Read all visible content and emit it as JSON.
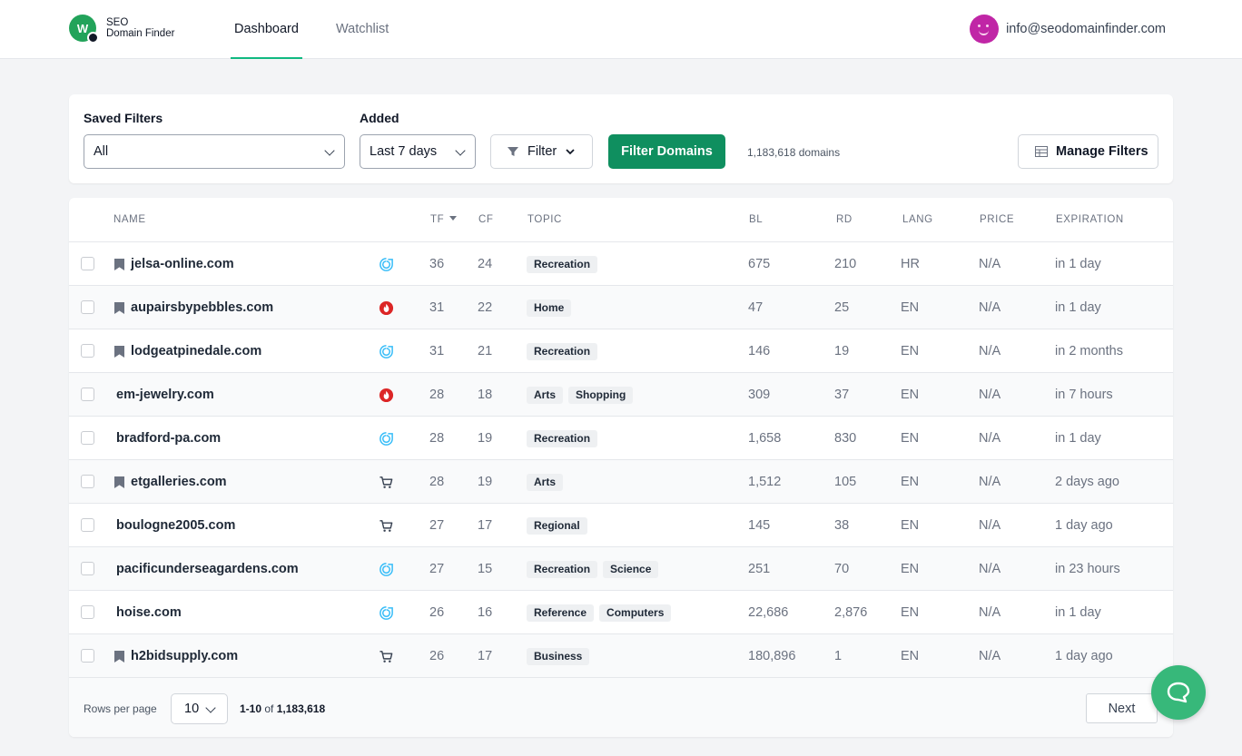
{
  "brand": {
    "logo_letter": "W",
    "line1": "SEO",
    "line2": "Domain Finder",
    "accent": "#10b981"
  },
  "nav": {
    "tabs": [
      {
        "label": "Dashboard",
        "active": true
      },
      {
        "label": "Watchlist",
        "active": false
      }
    ]
  },
  "user": {
    "email": "info@seodomainfinder.com",
    "avatar_icon": "smiley-avatar-icon"
  },
  "filters": {
    "saved_label": "Saved Filters",
    "saved_value": "All",
    "added_label": "Added",
    "added_value": "Last 7 days",
    "filter_button": "Filter",
    "filter_domains_button": "Filter Domains",
    "domain_count": "1,183,618 domains",
    "manage_filters_button": "Manage Filters"
  },
  "table": {
    "columns": {
      "name": "NAME",
      "tf": "TF",
      "cf": "CF",
      "topic": "TOPIC",
      "bl": "BL",
      "rd": "RD",
      "lang": "LANG",
      "price": "PRICE",
      "expiration": "EXPIRATION"
    },
    "sort_column": "TF",
    "rows": [
      {
        "name": "jelsa-online.com",
        "bookmarked": true,
        "source": "dropcatch-icon",
        "tf": "36",
        "cf": "24",
        "topics": [
          "Recreation"
        ],
        "bl": "675",
        "rd": "210",
        "lang": "HR",
        "price": "N/A",
        "expiration": "in 1 day"
      },
      {
        "name": "aupairsbypebbles.com",
        "bookmarked": true,
        "source": "fire-icon",
        "tf": "31",
        "cf": "22",
        "topics": [
          "Home"
        ],
        "bl": "47",
        "rd": "25",
        "lang": "EN",
        "price": "N/A",
        "expiration": "in 1 day"
      },
      {
        "name": "lodgeatpinedale.com",
        "bookmarked": true,
        "source": "dropcatch-icon",
        "tf": "31",
        "cf": "21",
        "topics": [
          "Recreation"
        ],
        "bl": "146",
        "rd": "19",
        "lang": "EN",
        "price": "N/A",
        "expiration": "in 2 months"
      },
      {
        "name": "em-jewelry.com",
        "bookmarked": false,
        "source": "fire-icon",
        "tf": "28",
        "cf": "18",
        "topics": [
          "Arts",
          "Shopping"
        ],
        "bl": "309",
        "rd": "37",
        "lang": "EN",
        "price": "N/A",
        "expiration": "in 7 hours"
      },
      {
        "name": "bradford-pa.com",
        "bookmarked": false,
        "source": "dropcatch-icon",
        "tf": "28",
        "cf": "19",
        "topics": [
          "Recreation"
        ],
        "bl": "1,658",
        "rd": "830",
        "lang": "EN",
        "price": "N/A",
        "expiration": "in 1 day"
      },
      {
        "name": "etgalleries.com",
        "bookmarked": true,
        "source": "cart-icon",
        "tf": "28",
        "cf": "19",
        "topics": [
          "Arts"
        ],
        "bl": "1,512",
        "rd": "105",
        "lang": "EN",
        "price": "N/A",
        "expiration": "2 days ago"
      },
      {
        "name": "boulogne2005.com",
        "bookmarked": false,
        "source": "cart-icon",
        "tf": "27",
        "cf": "17",
        "topics": [
          "Regional"
        ],
        "bl": "145",
        "rd": "38",
        "lang": "EN",
        "price": "N/A",
        "expiration": "1 day ago"
      },
      {
        "name": "pacificunderseagardens.com",
        "bookmarked": false,
        "source": "dropcatch-icon",
        "tf": "27",
        "cf": "15",
        "topics": [
          "Recreation",
          "Science"
        ],
        "bl": "251",
        "rd": "70",
        "lang": "EN",
        "price": "N/A",
        "expiration": "in 23 hours"
      },
      {
        "name": "hoise.com",
        "bookmarked": false,
        "source": "dropcatch-icon",
        "tf": "26",
        "cf": "16",
        "topics": [
          "Reference",
          "Computers"
        ],
        "bl": "22,686",
        "rd": "2,876",
        "lang": "EN",
        "price": "N/A",
        "expiration": "in 1 day"
      },
      {
        "name": "h2bidsupply.com",
        "bookmarked": true,
        "source": "cart-icon",
        "tf": "26",
        "cf": "17",
        "topics": [
          "Business"
        ],
        "bl": "180,896",
        "rd": "1",
        "lang": "EN",
        "price": "N/A",
        "expiration": "1 day ago"
      }
    ]
  },
  "pagination": {
    "rows_per_page_label": "Rows per page",
    "rows_per_page": "10",
    "range": "1-10",
    "of": "of",
    "total": "1,183,618",
    "next": "Next"
  },
  "chat": {
    "icon": "chat-bubble-icon"
  }
}
